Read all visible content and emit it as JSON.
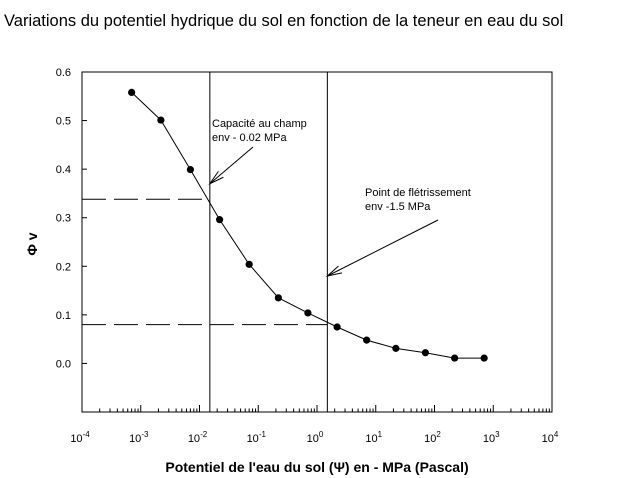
{
  "chart_data": {
    "type": "line",
    "title": "Variations du potentiel hydrique du sol en fonction de la teneur en eau du sol",
    "xlabel": "Potentiel de l'eau du sol (Ψ) en - MPa (Pascal)",
    "ylabel": "Φ v",
    "x_scale": "log",
    "xlim": [
      0.0001,
      10000
    ],
    "ylim": [
      -0.1,
      0.6
    ],
    "x_ticks": [
      {
        "value": 0.0001,
        "base": "10",
        "exp": "-4"
      },
      {
        "value": 0.001,
        "base": "10",
        "exp": "-3"
      },
      {
        "value": 0.01,
        "base": "10",
        "exp": "-2"
      },
      {
        "value": 0.1,
        "base": "10",
        "exp": "-1"
      },
      {
        "value": 1,
        "base": "10",
        "exp": "0"
      },
      {
        "value": 10,
        "base": "10",
        "exp": "1"
      },
      {
        "value": 100,
        "base": "10",
        "exp": "2"
      },
      {
        "value": 1000,
        "base": "10",
        "exp": "3"
      },
      {
        "value": 10000,
        "base": "10",
        "exp": "4"
      }
    ],
    "y_ticks": [
      {
        "value": 0.0,
        "label": "0.0"
      },
      {
        "value": 0.1,
        "label": "0.1"
      },
      {
        "value": 0.2,
        "label": "0.2"
      },
      {
        "value": 0.3,
        "label": "0.3"
      },
      {
        "value": 0.4,
        "label": "0.4"
      },
      {
        "value": 0.5,
        "label": "0.5"
      },
      {
        "value": 0.6,
        "label": "0.6"
      }
    ],
    "series": [
      {
        "x": [
          0.0007,
          0.0022,
          0.007,
          0.022,
          0.07,
          0.22,
          0.7,
          2.2,
          7,
          22,
          70,
          220,
          700
        ],
        "y": [
          0.558,
          0.501,
          0.399,
          0.296,
          0.204,
          0.135,
          0.104,
          0.075,
          0.048,
          0.031,
          0.022,
          0.011,
          0.011
        ]
      }
    ],
    "reference_lines": {
      "vertical": [
        0.015,
        1.5
      ],
      "horizontal": [
        {
          "y": 0.338,
          "x_end": 0.015
        },
        {
          "y": 0.08,
          "x_end": 1.5
        }
      ]
    },
    "annotations": [
      {
        "lines": [
          "Capacité au champ",
          "env  - 0.02 MPa"
        ],
        "arrow_target": {
          "x": 0.015,
          "y": 0.37
        }
      },
      {
        "lines": [
          "Point de flétrissement",
          "env  -1.5 MPa"
        ],
        "arrow_target": {
          "x": 1.5,
          "y": 0.18
        }
      }
    ],
    "grid": false,
    "legend": "none",
    "colors": {
      "line": "#000000",
      "marker": "#000000",
      "background": "#ffffff"
    }
  }
}
